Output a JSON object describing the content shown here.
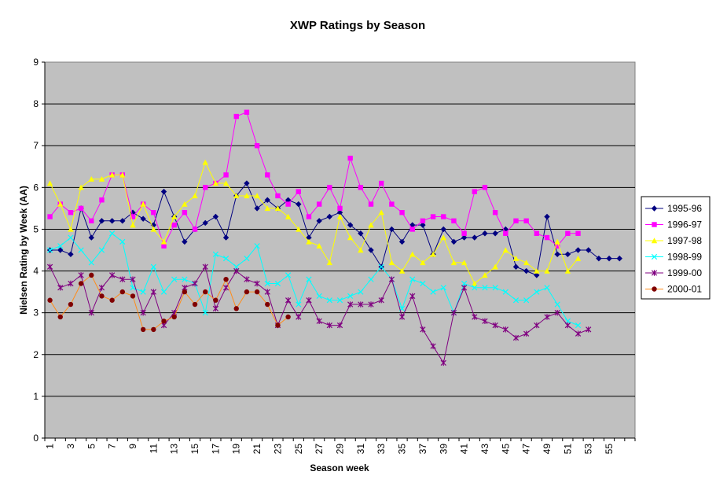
{
  "chart_data": {
    "type": "line",
    "title": "XWP Ratings by Season",
    "xlabel": "Season week",
    "ylabel": "Nielsen Rating by Week (AA)",
    "ylim": [
      0,
      9
    ],
    "xlim": [
      1,
      57
    ],
    "yticks": [
      0,
      1,
      2,
      3,
      4,
      5,
      6,
      7,
      8,
      9
    ],
    "xticks": [
      1,
      3,
      5,
      7,
      9,
      11,
      13,
      15,
      17,
      19,
      21,
      23,
      25,
      27,
      29,
      31,
      33,
      35,
      37,
      39,
      41,
      43,
      45,
      47,
      49,
      51,
      53,
      55
    ],
    "grid": "horizontal",
    "legend_position": "right",
    "plot_background": "#c0c0c0",
    "series": [
      {
        "name": "1995-96",
        "color": "#000080",
        "marker": "diamond",
        "values": [
          4.5,
          4.5,
          4.4,
          5.5,
          4.8,
          5.2,
          5.2,
          5.2,
          5.4,
          5.25,
          5.1,
          5.9,
          5.3,
          4.7,
          5.0,
          5.15,
          5.3,
          4.8,
          5.8,
          6.1,
          5.5,
          5.7,
          5.5,
          5.7,
          5.6,
          4.8,
          5.2,
          5.3,
          5.4,
          5.1,
          4.9,
          4.5,
          4.1,
          5.0,
          4.7,
          5.1,
          5.1,
          4.4,
          5.0,
          4.7,
          4.8,
          4.8,
          4.9,
          4.9,
          5.0,
          4.1,
          4.0,
          3.9,
          5.3,
          4.4,
          4.4,
          4.5,
          4.5,
          4.3,
          4.3,
          4.3
        ]
      },
      {
        "name": "1996-97",
        "color": "#ff00ff",
        "marker": "square",
        "values": [
          5.3,
          5.6,
          5.4,
          5.5,
          5.2,
          5.7,
          6.3,
          6.3,
          5.3,
          5.6,
          5.4,
          4.6,
          5.1,
          5.4,
          5.0,
          6.0,
          6.1,
          6.3,
          7.7,
          7.8,
          7.0,
          6.3,
          5.8,
          5.6,
          5.9,
          5.3,
          5.6,
          6.0,
          5.5,
          6.7,
          6.0,
          5.6,
          6.1,
          5.6,
          5.4,
          5.0,
          5.2,
          5.3,
          5.3,
          5.2,
          4.9,
          5.9,
          6.0,
          5.4,
          4.9,
          5.2,
          5.2,
          4.9,
          4.8,
          4.6,
          4.9,
          4.9
        ]
      },
      {
        "name": "1997-98",
        "color": "#ffff00",
        "marker": "triangle",
        "values": [
          6.1,
          5.6,
          5.0,
          6.0,
          6.2,
          6.2,
          6.3,
          6.3,
          5.1,
          5.6,
          5.0,
          4.7,
          5.3,
          5.6,
          5.8,
          6.6,
          6.1,
          6.1,
          5.8,
          5.8,
          5.8,
          5.5,
          5.5,
          5.3,
          5.0,
          4.7,
          4.6,
          4.2,
          5.3,
          4.8,
          4.5,
          5.1,
          5.4,
          4.2,
          4.0,
          4.4,
          4.2,
          4.4,
          4.8,
          4.2,
          4.2,
          3.7,
          3.9,
          4.1,
          4.5,
          4.3,
          4.2,
          4.0,
          4.0,
          4.7,
          4.0,
          4.3
        ]
      },
      {
        "name": "1998-99",
        "color": "#00ffff",
        "marker": "x",
        "values": [
          4.5,
          4.6,
          4.8,
          4.5,
          4.2,
          4.5,
          4.9,
          4.7,
          3.6,
          3.5,
          4.1,
          3.5,
          3.8,
          3.8,
          3.7,
          3.0,
          4.4,
          4.3,
          4.1,
          4.3,
          4.6,
          3.7,
          3.7,
          3.9,
          3.2,
          3.8,
          3.4,
          3.3,
          3.3,
          3.4,
          3.5,
          3.8,
          4.1,
          3.8,
          3.1,
          3.8,
          3.7,
          3.5,
          3.6,
          3.0,
          3.7,
          3.6,
          3.6,
          3.6,
          3.5,
          3.3,
          3.3,
          3.5,
          3.6,
          3.2,
          2.8,
          2.7
        ]
      },
      {
        "name": "1999-00",
        "color": "#800080",
        "marker": "star",
        "values": [
          4.1,
          3.6,
          3.7,
          3.9,
          3.0,
          3.6,
          3.9,
          3.8,
          3.8,
          3.0,
          3.5,
          2.7,
          3.0,
          3.6,
          3.7,
          4.1,
          3.1,
          3.6,
          4.0,
          3.8,
          3.7,
          3.5,
          2.7,
          3.3,
          2.9,
          3.3,
          2.8,
          2.7,
          2.7,
          3.2,
          3.2,
          3.2,
          3.3,
          3.8,
          2.9,
          3.4,
          2.6,
          2.2,
          1.8,
          3.0,
          3.6,
          2.9,
          2.8,
          2.7,
          2.6,
          2.4,
          2.5,
          2.7,
          2.9,
          3.0,
          2.7,
          2.5,
          2.6
        ]
      },
      {
        "name": "2000-01",
        "color": "#800000",
        "line_color": "#ff8c1a",
        "marker": "circle",
        "values": [
          3.3,
          2.9,
          3.2,
          3.7,
          3.9,
          3.4,
          3.3,
          3.5,
          3.4,
          2.6,
          2.6,
          2.8,
          2.9,
          3.5,
          3.2,
          3.5,
          3.3,
          3.8,
          3.1,
          3.5,
          3.5,
          3.2,
          2.7,
          2.9
        ]
      }
    ]
  }
}
